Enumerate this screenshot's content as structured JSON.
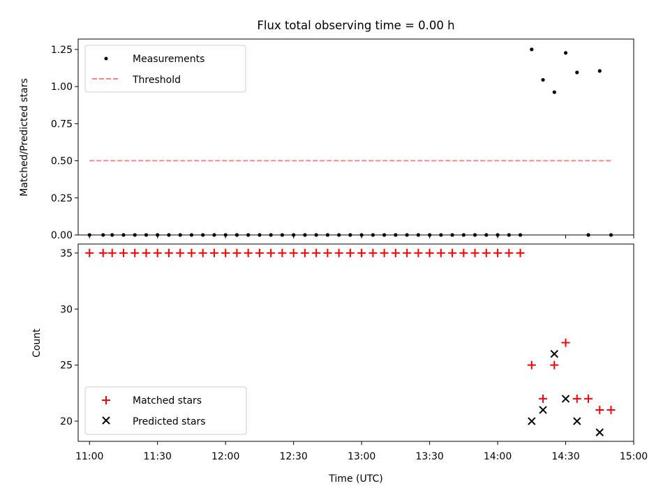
{
  "figure": {
    "title": "Flux total observing time = 0.00 h"
  },
  "chart_data": [
    {
      "type": "scatter",
      "title": "Flux total observing time = 0.00 h",
      "ylabel": "Matched/Predicted stars",
      "xlabel": "",
      "xlim": [
        "10:55",
        "15:00"
      ],
      "ylim": [
        0,
        1.32
      ],
      "yticks": [
        "0.00",
        "0.25",
        "0.50",
        "0.75",
        "1.00",
        "1.25"
      ],
      "legend_position": "top-left",
      "series": [
        {
          "name": "Measurements",
          "marker": "dot",
          "color": "#000000",
          "x": [
            "11:00",
            "11:06",
            "11:10",
            "11:15",
            "11:20",
            "11:25",
            "11:30",
            "11:35",
            "11:40",
            "11:45",
            "11:50",
            "11:55",
            "12:00",
            "12:05",
            "12:10",
            "12:15",
            "12:20",
            "12:25",
            "12:30",
            "12:35",
            "12:40",
            "12:45",
            "12:50",
            "12:55",
            "13:00",
            "13:05",
            "13:10",
            "13:15",
            "13:20",
            "13:25",
            "13:30",
            "13:35",
            "13:40",
            "13:45",
            "13:50",
            "13:55",
            "14:00",
            "14:05",
            "14:10",
            "14:15",
            "14:20",
            "14:25",
            "14:30",
            "14:35",
            "14:40",
            "14:45",
            "14:50"
          ],
          "y": [
            0,
            0,
            0,
            0,
            0,
            0,
            0,
            0,
            0,
            0,
            0,
            0,
            0,
            0,
            0,
            0,
            0,
            0,
            0,
            0,
            0,
            0,
            0,
            0,
            0,
            0,
            0,
            0,
            0,
            0,
            0,
            0,
            0,
            0,
            0,
            0,
            0,
            0,
            0,
            1.25,
            1.045,
            0.962,
            1.227,
            1.095,
            0,
            1.105,
            0
          ]
        },
        {
          "name": "Threshold",
          "style": "dashed",
          "color": "#ff8080",
          "x": [
            "11:00",
            "14:50"
          ],
          "y": [
            0.5,
            0.5
          ]
        }
      ]
    },
    {
      "type": "scatter",
      "ylabel": "Count",
      "xlabel": "Time (UTC)",
      "xlim": [
        "10:55",
        "15:00"
      ],
      "ylim": [
        18.2,
        35.8
      ],
      "yticks": [
        "20",
        "25",
        "30",
        "35"
      ],
      "xticks": [
        "11:00",
        "11:30",
        "12:00",
        "12:30",
        "13:00",
        "13:30",
        "14:00",
        "14:30",
        "15:00"
      ],
      "legend_position": "bottom-left",
      "series": [
        {
          "name": "Matched stars",
          "marker": "plus",
          "color": "#ff0000",
          "x": [
            "11:00",
            "11:06",
            "11:10",
            "11:15",
            "11:20",
            "11:25",
            "11:30",
            "11:35",
            "11:40",
            "11:45",
            "11:50",
            "11:55",
            "12:00",
            "12:05",
            "12:10",
            "12:15",
            "12:20",
            "12:25",
            "12:30",
            "12:35",
            "12:40",
            "12:45",
            "12:50",
            "12:55",
            "13:00",
            "13:05",
            "13:10",
            "13:15",
            "13:20",
            "13:25",
            "13:30",
            "13:35",
            "13:40",
            "13:45",
            "13:50",
            "13:55",
            "14:00",
            "14:05",
            "14:10",
            "14:15",
            "14:20",
            "14:25",
            "14:30",
            "14:35",
            "14:40",
            "14:45",
            "14:50"
          ],
          "y": [
            35,
            35,
            35,
            35,
            35,
            35,
            35,
            35,
            35,
            35,
            35,
            35,
            35,
            35,
            35,
            35,
            35,
            35,
            35,
            35,
            35,
            35,
            35,
            35,
            35,
            35,
            35,
            35,
            35,
            35,
            35,
            35,
            35,
            35,
            35,
            35,
            35,
            35,
            35,
            25,
            22,
            25,
            27,
            22,
            22,
            21,
            21
          ]
        },
        {
          "name": "Predicted stars",
          "marker": "x",
          "color": "#000000",
          "x": [
            "14:15",
            "14:20",
            "14:25",
            "14:30",
            "14:35",
            "14:45"
          ],
          "y": [
            20,
            21,
            26,
            22,
            20,
            19
          ]
        }
      ]
    }
  ]
}
